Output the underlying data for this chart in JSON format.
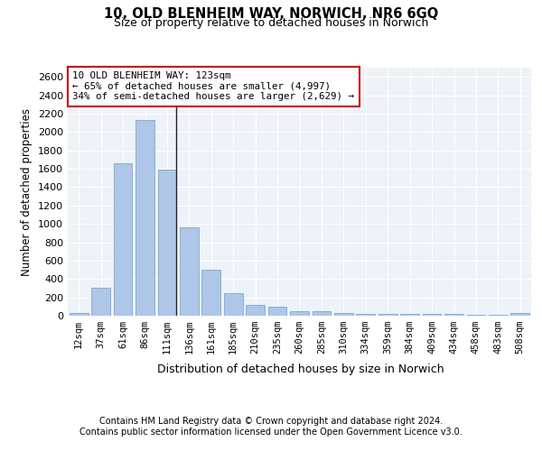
{
  "title1": "10, OLD BLENHEIM WAY, NORWICH, NR6 6GQ",
  "title2": "Size of property relative to detached houses in Norwich",
  "xlabel": "Distribution of detached houses by size in Norwich",
  "ylabel": "Number of detached properties",
  "annotation_line1": "10 OLD BLENHEIM WAY: 123sqm",
  "annotation_line2": "← 65% of detached houses are smaller (4,997)",
  "annotation_line3": "34% of semi-detached houses are larger (2,629) →",
  "categories": [
    "12sqm",
    "37sqm",
    "61sqm",
    "86sqm",
    "111sqm",
    "136sqm",
    "161sqm",
    "185sqm",
    "210sqm",
    "235sqm",
    "260sqm",
    "285sqm",
    "310sqm",
    "334sqm",
    "359sqm",
    "384sqm",
    "409sqm",
    "434sqm",
    "458sqm",
    "483sqm",
    "508sqm"
  ],
  "values": [
    25,
    300,
    1660,
    2130,
    1595,
    960,
    500,
    250,
    120,
    100,
    50,
    45,
    30,
    20,
    20,
    20,
    15,
    20,
    5,
    5,
    25
  ],
  "bar_color": "#aec6e8",
  "bar_edge_color": "#6a9fc8",
  "marker_bar_index": 4,
  "ylim": [
    0,
    2700
  ],
  "yticks": [
    0,
    200,
    400,
    600,
    800,
    1000,
    1200,
    1400,
    1600,
    1800,
    2000,
    2200,
    2400,
    2600
  ],
  "bg_color": "#eef2f9",
  "grid_color": "#ffffff",
  "annotation_box_color": "#ffffff",
  "annotation_box_edge": "#cc0000",
  "footer1": "Contains HM Land Registry data © Crown copyright and database right 2024.",
  "footer2": "Contains public sector information licensed under the Open Government Licence v3.0."
}
